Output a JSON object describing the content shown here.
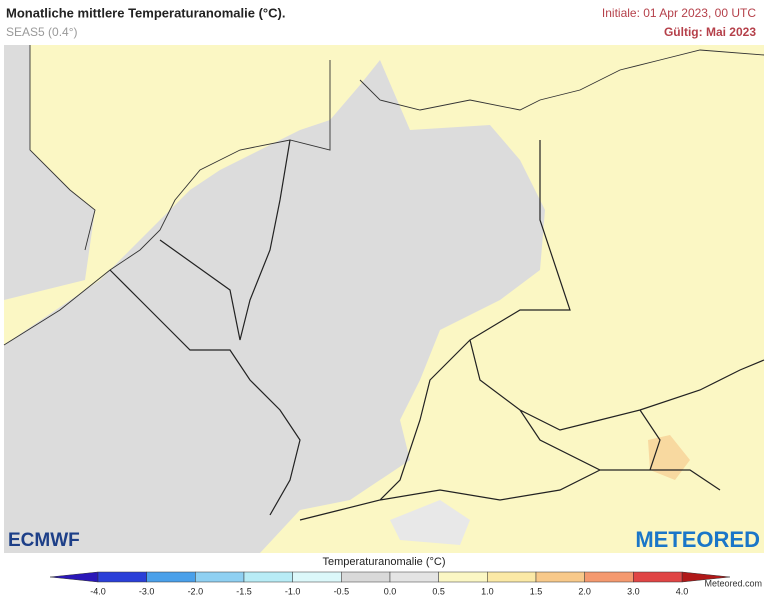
{
  "header": {
    "title": "Monatliche mittlere Temperaturanomalie (°C).",
    "subtitle": "SEAS5 (0.4°)",
    "initiale": "Initiale: 01 Apr 2023, 00 UTC",
    "gueltig": "Gültig: Mai 2023"
  },
  "legend": {
    "title": "Temperaturanomalie (°C)",
    "ticks": [
      "-4.0",
      "-3.0",
      "-2.0",
      "-1.5",
      "-1.0",
      "-0.5",
      "0.0",
      "0.5",
      "1.0",
      "1.5",
      "2.0",
      "3.0",
      "4.0"
    ],
    "colors": [
      "#2a3fd8",
      "#4aa0ea",
      "#8fd0f2",
      "#b8ecf6",
      "#dcf8fa",
      "#d9d9d9",
      "#e4e4e4",
      "#fbf7c4",
      "#fbe9a6",
      "#f8c98a",
      "#f4996f",
      "#e04545"
    ],
    "low_color": "#2a17b8",
    "high_color": "#b01818"
  },
  "logos": {
    "left": "ECMWF",
    "right": "METEORED",
    "site": "Meteored.com"
  }
}
